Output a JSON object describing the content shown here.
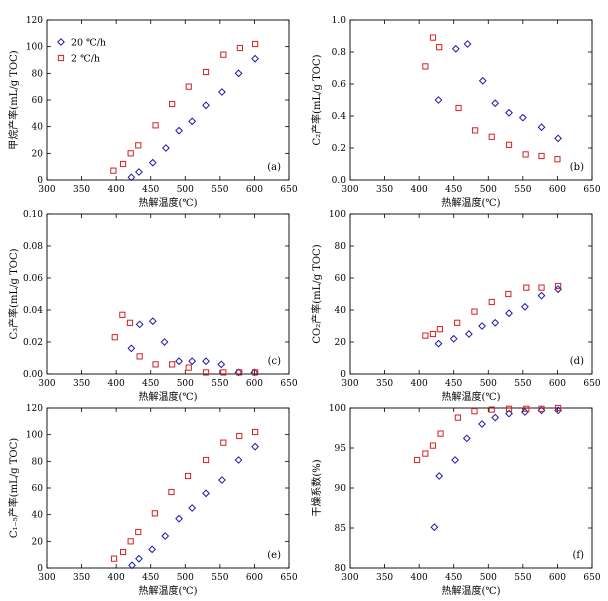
{
  "series_styles": [
    {
      "name": "20 ℃/h",
      "color": "#1a1aa8",
      "marker": "diamond"
    },
    {
      "name": "2 ℃/h",
      "color": "#d42020",
      "marker": "square"
    }
  ],
  "chart_data": [
    {
      "type": "scatter",
      "panel_label": "(a)",
      "xlabel": "热解温度(℃)",
      "ylabel": "甲烷产率(mL/g TOC)",
      "xlim": [
        300,
        650
      ],
      "ylim": [
        0,
        120
      ],
      "xticks": [
        300,
        350,
        400,
        450,
        500,
        550,
        600,
        650
      ],
      "yticks": [
        0,
        20,
        40,
        60,
        80,
        100,
        120
      ],
      "legend": "top-left",
      "series": [
        {
          "name": "20 ℃/h",
          "x": [
            422,
            433,
            453,
            472,
            491,
            510,
            530,
            553,
            577,
            601
          ],
          "y": [
            2,
            6,
            13,
            24,
            37,
            44,
            56,
            66,
            80,
            91
          ]
        },
        {
          "name": "2 ℃/h",
          "x": [
            396,
            410,
            421,
            432,
            457,
            481,
            505,
            530,
            555,
            579,
            601
          ],
          "y": [
            7,
            12,
            20,
            26,
            41,
            57,
            70,
            81,
            94,
            99,
            102
          ]
        }
      ]
    },
    {
      "type": "scatter",
      "panel_label": "(b)",
      "xlabel": "热解温度(℃)",
      "ylabel": "C₂产率(mL/g TOC)",
      "xlim": [
        300,
        650
      ],
      "ylim": [
        0,
        1.0
      ],
      "xticks": [
        300,
        350,
        400,
        450,
        500,
        550,
        600,
        650
      ],
      "yticks": [
        0,
        0.2,
        0.4,
        0.6,
        0.8,
        1.0
      ],
      "series": [
        {
          "name": "20 ℃/h",
          "x": [
            428,
            453,
            470,
            492,
            510,
            530,
            550,
            577,
            601
          ],
          "y": [
            0.5,
            0.82,
            0.85,
            0.62,
            0.48,
            0.42,
            0.39,
            0.33,
            0.26
          ]
        },
        {
          "name": "2 ℃/h",
          "x": [
            409,
            420,
            429,
            457,
            481,
            505,
            530,
            554,
            577,
            600
          ],
          "y": [
            0.71,
            0.89,
            0.83,
            0.45,
            0.31,
            0.27,
            0.22,
            0.16,
            0.15,
            0.13
          ]
        }
      ]
    },
    {
      "type": "scatter",
      "panel_label": "(c)",
      "xlabel": "热解温度(℃)",
      "ylabel": "C₃产率(mL/g TOC)",
      "xlim": [
        300,
        650
      ],
      "ylim": [
        0,
        0.1
      ],
      "xticks": [
        300,
        350,
        400,
        450,
        500,
        550,
        600,
        650
      ],
      "yticks": [
        0,
        0.02,
        0.04,
        0.06,
        0.08,
        0.1
      ],
      "series": [
        {
          "name": "20 ℃/h",
          "x": [
            422,
            434,
            453,
            470,
            491,
            510,
            530,
            552,
            577,
            600
          ],
          "y": [
            0.016,
            0.031,
            0.033,
            0.02,
            0.008,
            0.008,
            0.008,
            0.006,
            0.001,
            0.001
          ]
        },
        {
          "name": "2 ℃/h",
          "x": [
            398,
            409,
            420,
            434,
            457,
            481,
            505,
            530,
            555,
            578,
            601
          ],
          "y": [
            0.023,
            0.037,
            0.032,
            0.011,
            0.006,
            0.006,
            0.004,
            0.001,
            0.001,
            0.001,
            0.001
          ]
        }
      ]
    },
    {
      "type": "scatter",
      "panel_label": "(d)",
      "xlabel": "热解温度(℃)",
      "ylabel": "CO₂产率(mL/g TOC)",
      "xlim": [
        300,
        650
      ],
      "ylim": [
        0,
        100
      ],
      "xticks": [
        300,
        350,
        400,
        450,
        500,
        550,
        600,
        650
      ],
      "yticks": [
        0,
        20,
        40,
        60,
        80,
        100
      ],
      "series": [
        {
          "name": "20 ℃/h",
          "x": [
            428,
            450,
            472,
            491,
            510,
            530,
            553,
            577,
            601
          ],
          "y": [
            19,
            22,
            25,
            30,
            32,
            38,
            42,
            49,
            53
          ]
        },
        {
          "name": "2 ℃/h",
          "x": [
            409,
            420,
            430,
            455,
            480,
            505,
            529,
            555,
            577,
            601
          ],
          "y": [
            24,
            25,
            28,
            32,
            39,
            45,
            50,
            54,
            54,
            55
          ]
        }
      ]
    },
    {
      "type": "scatter",
      "panel_label": "(e)",
      "xlabel": "热解温度(℃)",
      "ylabel": "C₁₋₅产率(mL/g TOC)",
      "xlim": [
        300,
        650
      ],
      "ylim": [
        0,
        120
      ],
      "xticks": [
        300,
        350,
        400,
        450,
        500,
        550,
        600,
        650
      ],
      "yticks": [
        0,
        20,
        40,
        60,
        80,
        100,
        120
      ],
      "series": [
        {
          "name": "20 ℃/h",
          "x": [
            423,
            433,
            452,
            471,
            491,
            510,
            530,
            553,
            577,
            601
          ],
          "y": [
            2,
            7,
            14,
            24,
            37,
            45,
            56,
            66,
            81,
            91
          ]
        },
        {
          "name": "2 ℃/h",
          "x": [
            397,
            410,
            421,
            432,
            456,
            480,
            504,
            530,
            555,
            578,
            601
          ],
          "y": [
            7,
            12,
            20,
            27,
            41,
            57,
            69,
            81,
            94,
            99,
            102
          ]
        }
      ]
    },
    {
      "type": "scatter",
      "panel_label": "(f)",
      "xlabel": "热解温度(℃)",
      "ylabel": "干燥系数(%)",
      "xlim": [
        300,
        650
      ],
      "ylim": [
        80,
        100
      ],
      "xticks": [
        300,
        350,
        400,
        450,
        500,
        550,
        600,
        650
      ],
      "yticks": [
        80,
        85,
        90,
        95,
        100
      ],
      "series": [
        {
          "name": "20 ℃/h",
          "x": [
            422,
            429,
            452,
            469,
            491,
            510,
            530,
            553,
            577,
            601
          ],
          "y": [
            85.1,
            91.5,
            93.5,
            96.2,
            98.0,
            98.8,
            99.3,
            99.5,
            99.7,
            99.7
          ]
        },
        {
          "name": "2 ℃/h",
          "x": [
            397,
            409,
            420,
            431,
            456,
            480,
            505,
            530,
            555,
            577,
            601
          ],
          "y": [
            93.5,
            94.3,
            95.3,
            96.8,
            98.8,
            99.6,
            99.8,
            99.9,
            99.9,
            99.9,
            100.0
          ]
        }
      ]
    }
  ]
}
